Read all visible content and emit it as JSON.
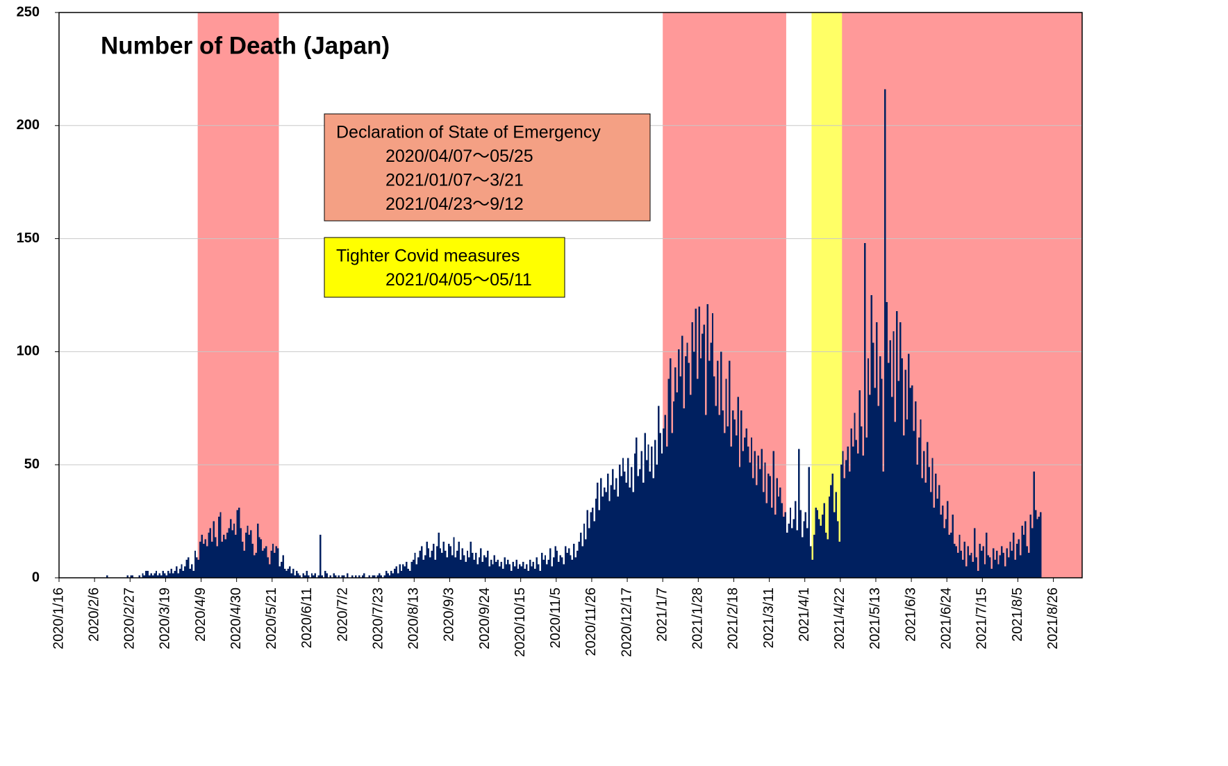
{
  "chart_data": {
    "type": "bar",
    "title": "Number of Death (Japan)",
    "color": "#002060",
    "xlim": [
      "2020/1/16",
      "2021/9/12"
    ],
    "xticks": [
      "2020/1/16",
      "2020/2/6",
      "2020/2/27",
      "2020/3/19",
      "2020/4/9",
      "2020/4/30",
      "2020/5/21",
      "2020/6/11",
      "2020/7/2",
      "2020/7/23",
      "2020/8/13",
      "2020/9/3",
      "2020/9/24",
      "2020/10/15",
      "2020/11/5",
      "2020/11/26",
      "2020/12/17",
      "2021/1/7",
      "2021/1/28",
      "2021/2/18",
      "2021/3/11",
      "2021/4/1",
      "2021/4/22",
      "2021/5/13",
      "2021/6/3",
      "2021/6/24",
      "2021/7/15",
      "2021/8/5",
      "2021/8/26"
    ],
    "ylim": [
      0,
      250
    ],
    "yticks": [
      0,
      50,
      100,
      150,
      200,
      250
    ],
    "grid": true,
    "spans": [
      {
        "start": "2020/4/7",
        "end": "2020/5/25",
        "color": "#ff9999"
      },
      {
        "start": "2021/1/7",
        "end": "2021/3/21",
        "color": "#ff9999"
      },
      {
        "start": "2021/4/5",
        "end": "2021/5/11",
        "color": "#ffff66"
      },
      {
        "start": "2021/4/23",
        "end": "2021/9/12",
        "color": "#ff9999"
      }
    ],
    "annotations": [
      {
        "lines": [
          "Declaration of State of Emergency",
          "2020/04/07～05/25",
          "2021/01/07～3/21",
          "2021/04/23～9/12"
        ],
        "color": "#f4a084"
      },
      {
        "lines": [
          "Tighter Covid measures",
          "2021/04/05～05/11"
        ],
        "color": "#ffff00"
      }
    ],
    "x": [
      "2020/1/16",
      "2020/1/17",
      "2020/1/18",
      "2020/1/19",
      "2020/1/20",
      "2020/1/21",
      "2020/1/22",
      "2020/1/23",
      "2020/1/24",
      "2020/1/25",
      "2020/1/26",
      "2020/1/27",
      "2020/1/28",
      "2020/1/29",
      "2020/1/30",
      "2020/1/31",
      "2020/2/1",
      "2020/2/2",
      "2020/2/3",
      "2020/2/4",
      "2020/2/5",
      "2020/2/6",
      "2020/2/7",
      "2020/2/8",
      "2020/2/9",
      "2020/2/10",
      "2020/2/11",
      "2020/2/12",
      "2020/2/13",
      "2020/2/14",
      "2020/2/15",
      "2020/2/16",
      "2020/2/17",
      "2020/2/18",
      "2020/2/19",
      "2020/2/20",
      "2020/2/21",
      "2020/2/22",
      "2020/2/23",
      "2020/2/24",
      "2020/2/25",
      "2020/2/26",
      "2020/2/27",
      "2020/2/28",
      "2020/2/29",
      "2020/3/1",
      "2020/3/2",
      "2020/3/3",
      "2020/3/4",
      "2020/3/5",
      "2020/3/6",
      "2020/3/7",
      "2020/3/8",
      "2020/3/9",
      "2020/3/10",
      "2020/3/11",
      "2020/3/12",
      "2020/3/13",
      "2020/3/14",
      "2020/3/15",
      "2020/3/16",
      "2020/3/17",
      "2020/3/18",
      "2020/3/19",
      "2020/3/20",
      "2020/3/21",
      "2020/3/22",
      "2020/3/23",
      "2020/3/24",
      "2020/3/25",
      "2020/3/26",
      "2020/3/27",
      "2020/3/28",
      "2020/3/29",
      "2020/3/30",
      "2020/3/31",
      "2020/4/1",
      "2020/4/2",
      "2020/4/3",
      "2020/4/4",
      "2020/4/5",
      "2020/4/6",
      "2020/4/7",
      "2020/4/8",
      "2020/4/9",
      "2020/4/10",
      "2020/4/11",
      "2020/4/12",
      "2020/4/13",
      "2020/4/14",
      "2020/4/15",
      "2020/4/16",
      "2020/4/17",
      "2020/4/18",
      "2020/4/19",
      "2020/4/20",
      "2020/4/21",
      "2020/4/22",
      "2020/4/23",
      "2020/4/24",
      "2020/4/25",
      "2020/4/26",
      "2020/4/27",
      "2020/4/28",
      "2020/4/29",
      "2020/4/30",
      "2020/5/1",
      "2020/5/2",
      "2020/5/3",
      "2020/5/4",
      "2020/5/5",
      "2020/5/6",
      "2020/5/7",
      "2020/5/8",
      "2020/5/9",
      "2020/5/10",
      "2020/5/11",
      "2020/5/12",
      "2020/5/13",
      "2020/5/14",
      "2020/5/15",
      "2020/5/16",
      "2020/5/17",
      "2020/5/18",
      "2020/5/19",
      "2020/5/20",
      "2020/5/21",
      "2020/5/22",
      "2020/5/23",
      "2020/5/24",
      "2020/5/25",
      "2020/5/26",
      "2020/5/27",
      "2020/5/28",
      "2020/5/29",
      "2020/5/30",
      "2020/5/31",
      "2020/6/1",
      "2020/6/2",
      "2020/6/3",
      "2020/6/4",
      "2020/6/5",
      "2020/6/6",
      "2020/6/7",
      "2020/6/8",
      "2020/6/9",
      "2020/6/10",
      "2020/6/11",
      "2020/6/12",
      "2020/6/13",
      "2020/6/14",
      "2020/6/15",
      "2020/6/16",
      "2020/6/17",
      "2020/6/18",
      "2020/6/19",
      "2020/6/20",
      "2020/6/21",
      "2020/6/22",
      "2020/6/23",
      "2020/6/24",
      "2020/6/25",
      "2020/6/26",
      "2020/6/27",
      "2020/6/28",
      "2020/6/29",
      "2020/6/30",
      "2020/7/1",
      "2020/7/2",
      "2020/7/3",
      "2020/7/4",
      "2020/7/5",
      "2020/7/6",
      "2020/7/7",
      "2020/7/8",
      "2020/7/9",
      "2020/7/10",
      "2020/7/11",
      "2020/7/12",
      "2020/7/13",
      "2020/7/14",
      "2020/7/15",
      "2020/7/16",
      "2020/7/17",
      "2020/7/18",
      "2020/7/19",
      "2020/7/20",
      "2020/7/21",
      "2020/7/22",
      "2020/7/23",
      "2020/7/24",
      "2020/7/25",
      "2020/7/26",
      "2020/7/27",
      "2020/7/28",
      "2020/7/29",
      "2020/7/30",
      "2020/7/31",
      "2020/8/1",
      "2020/8/2",
      "2020/8/3",
      "2020/8/4",
      "2020/8/5",
      "2020/8/6",
      "2020/8/7",
      "2020/8/8",
      "2020/8/9",
      "2020/8/10",
      "2020/8/11",
      "2020/8/12",
      "2020/8/13",
      "2020/8/14",
      "2020/8/15",
      "2020/8/16",
      "2020/8/17",
      "2020/8/18",
      "2020/8/19",
      "2020/8/20",
      "2020/8/21",
      "2020/8/22",
      "2020/8/23",
      "2020/8/24",
      "2020/8/25",
      "2020/8/26",
      "2020/8/27",
      "2020/8/28",
      "2020/8/29",
      "2020/8/30",
      "2020/8/31",
      "2020/9/1",
      "2020/9/2",
      "2020/9/3",
      "2020/9/4",
      "2020/9/5",
      "2020/9/6",
      "2020/9/7",
      "2020/9/8",
      "2020/9/9",
      "2020/9/10",
      "2020/9/11",
      "2020/9/12",
      "2020/9/13",
      "2020/9/14",
      "2020/9/15",
      "2020/9/16",
      "2020/9/17",
      "2020/9/18",
      "2020/9/19",
      "2020/9/20",
      "2020/9/21",
      "2020/9/22",
      "2020/9/23",
      "2020/9/24",
      "2020/9/25",
      "2020/9/26",
      "2020/9/27",
      "2020/9/28",
      "2020/9/29",
      "2020/9/30",
      "2020/10/1",
      "2020/10/2",
      "2020/10/3",
      "2020/10/4",
      "2020/10/5",
      "2020/10/6",
      "2020/10/7",
      "2020/10/8",
      "2020/10/9",
      "2020/10/10",
      "2020/10/11",
      "2020/10/12",
      "2020/10/13",
      "2020/10/14",
      "2020/10/15",
      "2020/10/16",
      "2020/10/17",
      "2020/10/18",
      "2020/10/19",
      "2020/10/20",
      "2020/10/21",
      "2020/10/22",
      "2020/10/23",
      "2020/10/24",
      "2020/10/25",
      "2020/10/26",
      "2020/10/27",
      "2020/10/28",
      "2020/10/29",
      "2020/10/30",
      "2020/10/31",
      "2020/11/1",
      "2020/11/2",
      "2020/11/3",
      "2020/11/4",
      "2020/11/5",
      "2020/11/6",
      "2020/11/7",
      "2020/11/8",
      "2020/11/9",
      "2020/11/10",
      "2020/11/11",
      "2020/11/12",
      "2020/11/13",
      "2020/11/14",
      "2020/11/15",
      "2020/11/16",
      "2020/11/17",
      "2020/11/18",
      "2020/11/19",
      "2020/11/20",
      "2020/11/21",
      "2020/11/22",
      "2020/11/23",
      "2020/11/24",
      "2020/11/25",
      "2020/11/26",
      "2020/11/27",
      "2020/11/28",
      "2020/11/29",
      "2020/11/30",
      "2020/12/1",
      "2020/12/2",
      "2020/12/3",
      "2020/12/4",
      "2020/12/5",
      "2020/12/6",
      "2020/12/7",
      "2020/12/8",
      "2020/12/9",
      "2020/12/10",
      "2020/12/11",
      "2020/12/12",
      "2020/12/13",
      "2020/12/14",
      "2020/12/15",
      "2020/12/16",
      "2020/12/17",
      "2020/12/18",
      "2020/12/19",
      "2020/12/20",
      "2020/12/21",
      "2020/12/22",
      "2020/12/23",
      "2020/12/24",
      "2020/12/25",
      "2020/12/26",
      "2020/12/27",
      "2020/12/28",
      "2020/12/29",
      "2020/12/30",
      "2020/12/31",
      "2021/1/1",
      "2021/1/2",
      "2021/1/3",
      "2021/1/4",
      "2021/1/5",
      "2021/1/6",
      "2021/1/7",
      "2021/1/8",
      "2021/1/9",
      "2021/1/10",
      "2021/1/11",
      "2021/1/12",
      "2021/1/13",
      "2021/1/14",
      "2021/1/15",
      "2021/1/16",
      "2021/1/17",
      "2021/1/18",
      "2021/1/19",
      "2021/1/20",
      "2021/1/21",
      "2021/1/22",
      "2021/1/23",
      "2021/1/24",
      "2021/1/25",
      "2021/1/26",
      "2021/1/27",
      "2021/1/28",
      "2021/1/29",
      "2021/1/30",
      "2021/1/31",
      "2021/2/1",
      "2021/2/2",
      "2021/2/3",
      "2021/2/4",
      "2021/2/5",
      "2021/2/6",
      "2021/2/7",
      "2021/2/8",
      "2021/2/9",
      "2021/2/10",
      "2021/2/11",
      "2021/2/12",
      "2021/2/13",
      "2021/2/14",
      "2021/2/15",
      "2021/2/16",
      "2021/2/17",
      "2021/2/18",
      "2021/2/19",
      "2021/2/20",
      "2021/2/21",
      "2021/2/22",
      "2021/2/23",
      "2021/2/24",
      "2021/2/25",
      "2021/2/26",
      "2021/2/27",
      "2021/2/28",
      "2021/3/1",
      "2021/3/2",
      "2021/3/3",
      "2021/3/4",
      "2021/3/5",
      "2021/3/6",
      "2021/3/7",
      "2021/3/8",
      "2021/3/9",
      "2021/3/10",
      "2021/3/11",
      "2021/3/12",
      "2021/3/13",
      "2021/3/14",
      "2021/3/15",
      "2021/3/16",
      "2021/3/17",
      "2021/3/18",
      "2021/3/19",
      "2021/3/20",
      "2021/3/21",
      "2021/3/22",
      "2021/3/23",
      "2021/3/24",
      "2021/3/25",
      "2021/3/26",
      "2021/3/27",
      "2021/3/28",
      "2021/3/29",
      "2021/3/30",
      "2021/3/31",
      "2021/4/1",
      "2021/4/2",
      "2021/4/3",
      "2021/4/4",
      "2021/4/5",
      "2021/4/6",
      "2021/4/7",
      "2021/4/8",
      "2021/4/9",
      "2021/4/10",
      "2021/4/11",
      "2021/4/12",
      "2021/4/13",
      "2021/4/14",
      "2021/4/15",
      "2021/4/16",
      "2021/4/17",
      "2021/4/18",
      "2021/4/19",
      "2021/4/20",
      "2021/4/21",
      "2021/4/22",
      "2021/4/23",
      "2021/4/24",
      "2021/4/25",
      "2021/4/26",
      "2021/4/27",
      "2021/4/28",
      "2021/4/29",
      "2021/4/30",
      "2021/5/1",
      "2021/5/2",
      "2021/5/3",
      "2021/5/4",
      "2021/5/5",
      "2021/5/6",
      "2021/5/7",
      "2021/5/8",
      "2021/5/9",
      "2021/5/10",
      "2021/5/11",
      "2021/5/12",
      "2021/5/13",
      "2021/5/14",
      "2021/5/15",
      "2021/5/16",
      "2021/5/17",
      "2021/5/18",
      "2021/5/19",
      "2021/5/20",
      "2021/5/21",
      "2021/5/22",
      "2021/5/23",
      "2021/5/24",
      "2021/5/25",
      "2021/5/26",
      "2021/5/27",
      "2021/5/28",
      "2021/5/29",
      "2021/5/30",
      "2021/5/31",
      "2021/6/1",
      "2021/6/2",
      "2021/6/3",
      "2021/6/4",
      "2021/6/5",
      "2021/6/6",
      "2021/6/7",
      "2021/6/8",
      "2021/6/9",
      "2021/6/10",
      "2021/6/11",
      "2021/6/12",
      "2021/6/13",
      "2021/6/14",
      "2021/6/15",
      "2021/6/16",
      "2021/6/17",
      "2021/6/18",
      "2021/6/19",
      "2021/6/20",
      "2021/6/21",
      "2021/6/22",
      "2021/6/23",
      "2021/6/24",
      "2021/6/25",
      "2021/6/26",
      "2021/6/27",
      "2021/6/28",
      "2021/6/29",
      "2021/6/30",
      "2021/7/1",
      "2021/7/2",
      "2021/7/3",
      "2021/7/4",
      "2021/7/5",
      "2021/7/6",
      "2021/7/7",
      "2021/7/8",
      "2021/7/9",
      "2021/7/10",
      "2021/7/11",
      "2021/7/12",
      "2021/7/13",
      "2021/7/14",
      "2021/7/15",
      "2021/7/16",
      "2021/7/17",
      "2021/7/18",
      "2021/7/19",
      "2021/7/20",
      "2021/7/21",
      "2021/7/22",
      "2021/7/23",
      "2021/7/24",
      "2021/7/25",
      "2021/7/26",
      "2021/7/27",
      "2021/7/28",
      "2021/7/29",
      "2021/7/30",
      "2021/7/31",
      "2021/8/1",
      "2021/8/2",
      "2021/8/3",
      "2021/8/4",
      "2021/8/5",
      "2021/8/6",
      "2021/8/7",
      "2021/8/8",
      "2021/8/9",
      "2021/8/10",
      "2021/8/11",
      "2021/8/12",
      "2021/8/13",
      "2021/8/14",
      "2021/8/15",
      "2021/8/16",
      "2021/8/17",
      "2021/8/18"
    ],
    "values": [
      0,
      0,
      0,
      0,
      0,
      0,
      0,
      0,
      0,
      0,
      0,
      0,
      0,
      0,
      0,
      0,
      0,
      0,
      0,
      0,
      0,
      0,
      0,
      0,
      0,
      0,
      0,
      0,
      1,
      0,
      0,
      0,
      0,
      0,
      0,
      0,
      0,
      0,
      0,
      0,
      1,
      0,
      1,
      1,
      0,
      0,
      0,
      1,
      0,
      2,
      1,
      3,
      3,
      1,
      2,
      1,
      2,
      3,
      1,
      2,
      1,
      3,
      2,
      1,
      3,
      2,
      4,
      2,
      3,
      5,
      2,
      4,
      6,
      3,
      5,
      8,
      9,
      4,
      6,
      3,
      12,
      9,
      8,
      16,
      19,
      15,
      17,
      14,
      20,
      22,
      16,
      25,
      18,
      14,
      27,
      29,
      16,
      19,
      17,
      20,
      22,
      26,
      21,
      24,
      19,
      30,
      31,
      22,
      16,
      12,
      20,
      23,
      19,
      21,
      15,
      10,
      11,
      24,
      18,
      17,
      12,
      13,
      14,
      9,
      6,
      12,
      15,
      11,
      14,
      13,
      5,
      7,
      10,
      4,
      3,
      4,
      5,
      2,
      4,
      1,
      3,
      2,
      1,
      0,
      2,
      1,
      3,
      1,
      0,
      2,
      1,
      2,
      0,
      1,
      19,
      1,
      0,
      3,
      2,
      0,
      1,
      0,
      2,
      1,
      0,
      1,
      0,
      1,
      1,
      0,
      2,
      0,
      0,
      1,
      0,
      1,
      0,
      1,
      0,
      1,
      2,
      0,
      0,
      1,
      0,
      1,
      1,
      0,
      1,
      2,
      1,
      0,
      1,
      3,
      2,
      1,
      3,
      2,
      4,
      5,
      2,
      6,
      3,
      6,
      5,
      7,
      4,
      3,
      7,
      8,
      11,
      6,
      9,
      12,
      14,
      8,
      10,
      16,
      13,
      9,
      12,
      15,
      8,
      14,
      20,
      13,
      11,
      16,
      12,
      9,
      15,
      14,
      10,
      18,
      9,
      12,
      16,
      8,
      13,
      10,
      7,
      12,
      9,
      16,
      11,
      8,
      11,
      6,
      9,
      13,
      7,
      10,
      9,
      12,
      5,
      8,
      6,
      10,
      7,
      8,
      5,
      7,
      4,
      9,
      6,
      8,
      6,
      3,
      7,
      5,
      8,
      4,
      6,
      5,
      7,
      4,
      6,
      3,
      8,
      5,
      7,
      4,
      9,
      6,
      3,
      11,
      8,
      10,
      6,
      8,
      13,
      5,
      9,
      14,
      12,
      7,
      10,
      9,
      6,
      14,
      11,
      13,
      10,
      8,
      15,
      9,
      12,
      16,
      20,
      14,
      24,
      17,
      30,
      22,
      29,
      31,
      25,
      35,
      42,
      30,
      44,
      36,
      40,
      38,
      46,
      34,
      41,
      48,
      39,
      44,
      36,
      50,
      45,
      53,
      47,
      42,
      53,
      40,
      49,
      38,
      55,
      62,
      45,
      48,
      56,
      42,
      64,
      52,
      59,
      47,
      58,
      44,
      61,
      50,
      76,
      64,
      55,
      66,
      72,
      58,
      88,
      97,
      64,
      78,
      93,
      82,
      101,
      89,
      107,
      75,
      98,
      104,
      95,
      81,
      113,
      100,
      119,
      88,
      120,
      97,
      108,
      112,
      72,
      121,
      96,
      104,
      117,
      89,
      76,
      96,
      72,
      100,
      74,
      64,
      88,
      67,
      96,
      58,
      74,
      70,
      63,
      80,
      49,
      74,
      56,
      62,
      66,
      58,
      51,
      62,
      44,
      56,
      41,
      54,
      48,
      57,
      38,
      51,
      33,
      46,
      45,
      31,
      56,
      28,
      44,
      36,
      40,
      33,
      27,
      29,
      20,
      24,
      31,
      22,
      26,
      34,
      21,
      57,
      30,
      18,
      25,
      29,
      22,
      49,
      14,
      8,
      19,
      31,
      30,
      26,
      23,
      28,
      33,
      20,
      17,
      36,
      41,
      46,
      29,
      38,
      25,
      16,
      50,
      56,
      44,
      52,
      58,
      47,
      66,
      58,
      73,
      61,
      55,
      83,
      67,
      54,
      148,
      62,
      97,
      81,
      125,
      104,
      84,
      113,
      76,
      98,
      88,
      47,
      216,
      122,
      95,
      105,
      80,
      109,
      69,
      118,
      87,
      113,
      97,
      63,
      92,
      70,
      99,
      84,
      85,
      65,
      78,
      50,
      62,
      70,
      44,
      56,
      42,
      60,
      49,
      38,
      53,
      31,
      46,
      35,
      41,
      28,
      32,
      22,
      26,
      34,
      19,
      20,
      28,
      15,
      14,
      11,
      19,
      12,
      8,
      16,
      5,
      14,
      10,
      11,
      7,
      22,
      9,
      3,
      15,
      12,
      14,
      6,
      20,
      10,
      9,
      4,
      13,
      8,
      12,
      6,
      10,
      14,
      11,
      5,
      13,
      9,
      16,
      12,
      20,
      8,
      15,
      17,
      10,
      23,
      19,
      25,
      14,
      11,
      28,
      22,
      47,
      30,
      26,
      27,
      29
    ]
  }
}
